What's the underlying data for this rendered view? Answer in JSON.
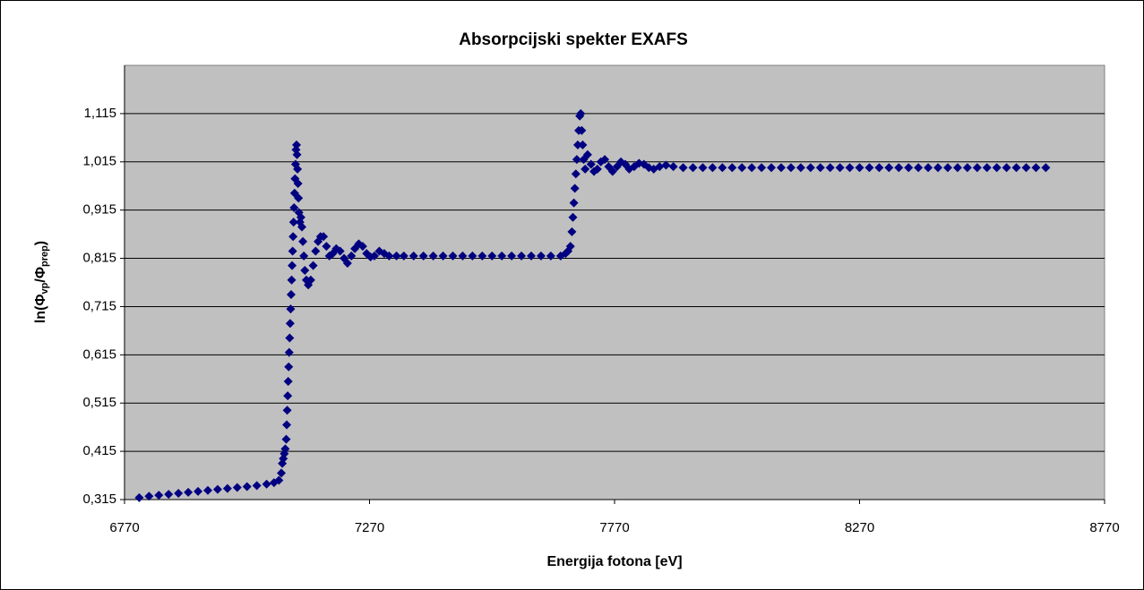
{
  "chart_data": {
    "type": "scatter",
    "title": "Absorpcijski spekter EXAFS",
    "xlabel": "Energija fotona [eV]",
    "ylabel": [
      "ln(Φ",
      "vp",
      "/Φ",
      "prep",
      ")"
    ],
    "color": "#000080",
    "plot_color": "#c0c0c0",
    "grid": true,
    "xlim": [
      6770,
      8770
    ],
    "xticks": [
      6770,
      7270,
      7770,
      8270,
      8770
    ],
    "ylim": [
      0.315,
      1.215
    ],
    "yticks": [
      {
        "value": 0.315,
        "label": "0,315"
      },
      {
        "value": 0.415,
        "label": "0,415"
      },
      {
        "value": 0.515,
        "label": "0,515"
      },
      {
        "value": 0.615,
        "label": "0,615"
      },
      {
        "value": 0.715,
        "label": "0,715"
      },
      {
        "value": 0.815,
        "label": "0,815"
      },
      {
        "value": 0.915,
        "label": "0,915"
      },
      {
        "value": 1.015,
        "label": "1,015"
      },
      {
        "value": 1.115,
        "label": "1,115"
      }
    ],
    "x": [
      6800,
      6820,
      6840,
      6860,
      6880,
      6900,
      6920,
      6940,
      6960,
      6980,
      7000,
      7020,
      7040,
      7060,
      7075,
      7085,
      7090,
      7092,
      7094,
      7096,
      7098,
      7100,
      7101,
      7102,
      7103,
      7104,
      7105,
      7106,
      7107,
      7108,
      7109,
      7110,
      7111,
      7112,
      7113,
      7114,
      7115,
      7116,
      7117,
      7118,
      7119,
      7120,
      7121,
      7122,
      7123,
      7124,
      7125,
      7126,
      7128,
      7130,
      7132,
      7134,
      7136,
      7138,
      7141,
      7145,
      7150,
      7155,
      7160,
      7165,
      7170,
      7176,
      7182,
      7188,
      7195,
      7202,
      7210,
      7218,
      7225,
      7233,
      7240,
      7248,
      7256,
      7264,
      7272,
      7280,
      7290,
      7300,
      7310,
      7325,
      7340,
      7360,
      7380,
      7400,
      7420,
      7440,
      7460,
      7480,
      7500,
      7520,
      7540,
      7560,
      7580,
      7600,
      7620,
      7640,
      7660,
      7670,
      7675,
      7680,
      7683,
      7685,
      7687,
      7689,
      7691,
      7693,
      7695,
      7697,
      7699,
      7701,
      7703,
      7705,
      7707,
      7710,
      7715,
      7722,
      7728,
      7735,
      7742,
      7750,
      7758,
      7766,
      7775,
      7783,
      7792,
      7800,
      7810,
      7820,
      7830,
      7840,
      7850,
      7862,
      7875,
      7890,
      7910,
      7930,
      7950,
      7970,
      7990,
      8010,
      8030,
      8050,
      8070,
      8090,
      8110,
      8130,
      8150,
      8170,
      8190,
      8210,
      8230,
      8250,
      8270,
      8290,
      8310,
      8330,
      8350,
      8370,
      8390,
      8410,
      8430,
      8450,
      8470,
      8490,
      8510,
      8530,
      8550,
      8570,
      8590,
      8610,
      8630,
      8650
    ],
    "values": [
      0.319,
      0.322,
      0.324,
      0.326,
      0.328,
      0.33,
      0.332,
      0.334,
      0.336,
      0.338,
      0.34,
      0.342,
      0.344,
      0.347,
      0.35,
      0.355,
      0.37,
      0.39,
      0.4,
      0.41,
      0.42,
      0.44,
      0.47,
      0.5,
      0.53,
      0.56,
      0.59,
      0.62,
      0.65,
      0.68,
      0.71,
      0.74,
      0.77,
      0.8,
      0.83,
      0.86,
      0.89,
      0.92,
      0.95,
      0.98,
      1.01,
      1.04,
      1.05,
      1.03,
      1.0,
      0.97,
      0.94,
      0.91,
      0.89,
      0.9,
      0.88,
      0.85,
      0.82,
      0.79,
      0.77,
      0.76,
      0.77,
      0.8,
      0.83,
      0.85,
      0.86,
      0.86,
      0.84,
      0.82,
      0.825,
      0.835,
      0.83,
      0.815,
      0.805,
      0.82,
      0.835,
      0.845,
      0.84,
      0.825,
      0.818,
      0.82,
      0.83,
      0.825,
      0.82,
      0.82,
      0.82,
      0.82,
      0.82,
      0.82,
      0.82,
      0.82,
      0.82,
      0.82,
      0.82,
      0.82,
      0.82,
      0.82,
      0.82,
      0.82,
      0.82,
      0.82,
      0.82,
      0.825,
      0.83,
      0.84,
      0.87,
      0.9,
      0.93,
      0.96,
      0.99,
      1.02,
      1.05,
      1.08,
      1.11,
      1.115,
      1.08,
      1.05,
      1.02,
      1.0,
      1.03,
      1.01,
      0.995,
      1.0,
      1.015,
      1.02,
      1.005,
      0.995,
      1.005,
      1.015,
      1.01,
      1.0,
      1.005,
      1.012,
      1.01,
      1.003,
      1.0,
      1.005,
      1.008,
      1.005,
      1.003,
      1.003,
      1.003,
      1.003,
      1.003,
      1.003,
      1.003,
      1.003,
      1.003,
      1.003,
      1.003,
      1.003,
      1.003,
      1.003,
      1.003,
      1.003,
      1.003,
      1.003,
      1.003,
      1.003,
      1.003,
      1.003,
      1.003,
      1.003,
      1.003,
      1.003,
      1.003,
      1.003,
      1.003,
      1.003,
      1.003,
      1.003,
      1.003,
      1.003,
      1.003,
      1.003,
      1.003,
      1.003
    ]
  }
}
